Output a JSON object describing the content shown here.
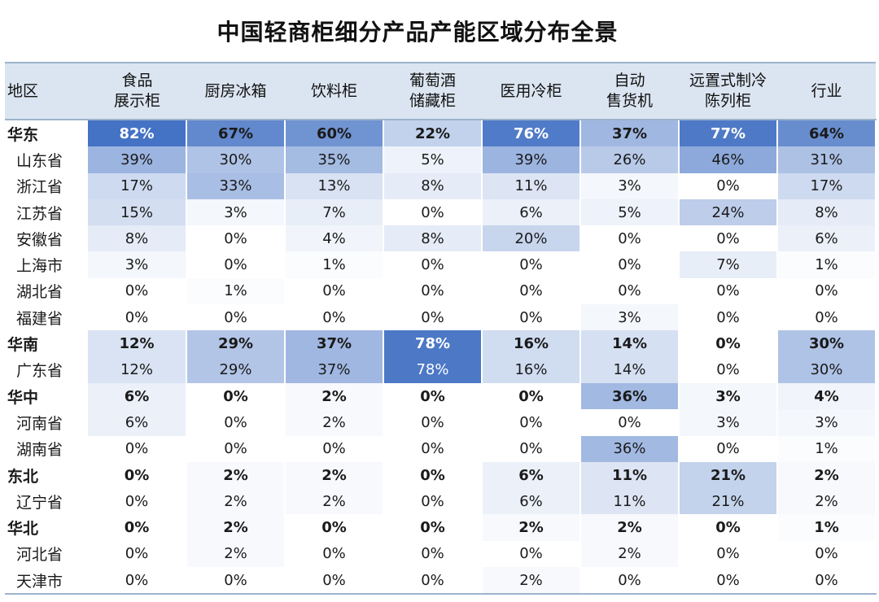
{
  "chart_data": {
    "type": "table",
    "title": "中国轻商柜细分产品产能区域分布全景",
    "header_label": "地区",
    "columns": [
      "食品\n展示柜",
      "厨房冰箱",
      "饮料柜",
      "葡萄酒\n储藏柜",
      "医用冷柜",
      "自动\n售货机",
      "远置式制冷\n陈列柜",
      "行业"
    ],
    "rows": [
      {
        "label": "华东",
        "kind": "region",
        "values": [
          82,
          67,
          60,
          22,
          76,
          37,
          77,
          64
        ]
      },
      {
        "label": "山东省",
        "kind": "province",
        "values": [
          39,
          30,
          35,
          5,
          39,
          26,
          46,
          31
        ]
      },
      {
        "label": "浙江省",
        "kind": "province",
        "values": [
          17,
          33,
          13,
          8,
          11,
          3,
          0,
          17
        ]
      },
      {
        "label": "江苏省",
        "kind": "province",
        "values": [
          15,
          3,
          7,
          0,
          6,
          5,
          24,
          8
        ]
      },
      {
        "label": "安徽省",
        "kind": "province",
        "values": [
          8,
          0,
          4,
          8,
          20,
          0,
          0,
          6
        ]
      },
      {
        "label": "上海市",
        "kind": "province",
        "values": [
          3,
          0,
          1,
          0,
          0,
          0,
          7,
          1
        ]
      },
      {
        "label": "湖北省",
        "kind": "province",
        "values": [
          0,
          1,
          0,
          0,
          0,
          0,
          0,
          0
        ]
      },
      {
        "label": "福建省",
        "kind": "province",
        "values": [
          0,
          0,
          0,
          0,
          0,
          3,
          0,
          0
        ]
      },
      {
        "label": "华南",
        "kind": "region",
        "values": [
          12,
          29,
          37,
          78,
          16,
          14,
          0,
          30
        ]
      },
      {
        "label": "广东省",
        "kind": "province",
        "values": [
          12,
          29,
          37,
          78,
          16,
          14,
          0,
          30
        ]
      },
      {
        "label": "华中",
        "kind": "region",
        "values": [
          6,
          0,
          2,
          0,
          0,
          36,
          3,
          4
        ]
      },
      {
        "label": "河南省",
        "kind": "province",
        "values": [
          6,
          0,
          2,
          0,
          0,
          0,
          3,
          3
        ]
      },
      {
        "label": "湖南省",
        "kind": "province",
        "values": [
          0,
          0,
          0,
          0,
          0,
          36,
          0,
          1
        ]
      },
      {
        "label": "东北",
        "kind": "region",
        "values": [
          0,
          2,
          2,
          0,
          6,
          11,
          21,
          2
        ]
      },
      {
        "label": "辽宁省",
        "kind": "province",
        "values": [
          0,
          2,
          2,
          0,
          6,
          11,
          21,
          2
        ]
      },
      {
        "label": "华北",
        "kind": "region",
        "values": [
          0,
          2,
          0,
          0,
          2,
          2,
          0,
          1
        ]
      },
      {
        "label": "河北省",
        "kind": "province",
        "values": [
          0,
          2,
          0,
          0,
          0,
          2,
          0,
          0
        ]
      },
      {
        "label": "天津市",
        "kind": "province",
        "values": [
          0,
          0,
          0,
          0,
          2,
          0,
          0,
          0
        ]
      }
    ],
    "value_suffix": "%",
    "colors": {
      "low": "#ffffff",
      "high": "#4472c4",
      "header_bg": "#dbe5f1",
      "rule": "#9db3cc"
    }
  }
}
